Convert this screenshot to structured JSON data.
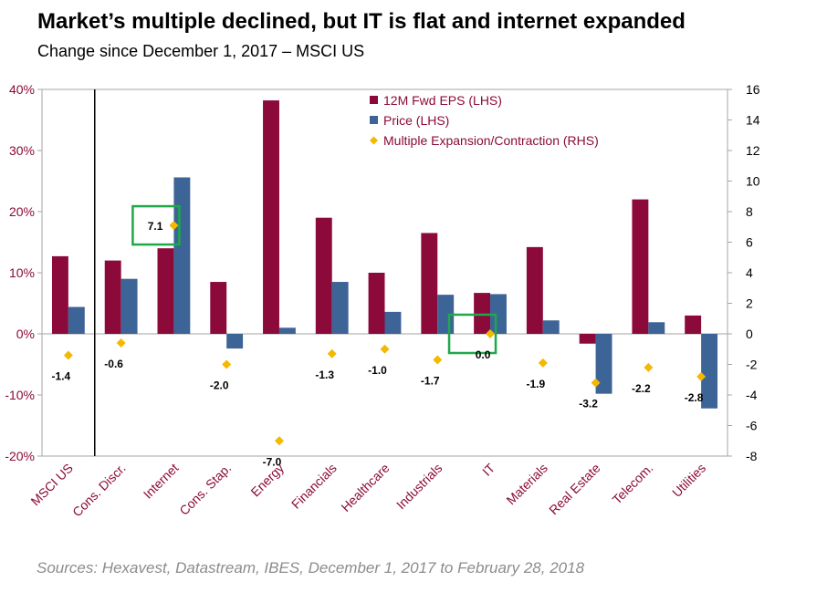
{
  "title": "Market’s multiple declined, but IT is flat and internet expanded",
  "subtitle": "Change since December 1, 2017 – MSCI US",
  "source": "Sources: Hexavest, Datastream, IBES, December 1, 2017 to February 28, 2018",
  "colors": {
    "eps": "#8b0a3a",
    "price": "#3d6496",
    "multiple": "#f5b800",
    "highlight": "#1ea84a"
  },
  "chart_data": {
    "type": "bar",
    "categories": [
      "MSCI US",
      "Cons. Discr.",
      "Internet",
      "Cons. Stap.",
      "Energy",
      "Financials",
      "Healthcare",
      "Industrials",
      "IT",
      "Materials",
      "Real Estate",
      "Telecom.",
      "Utilities"
    ],
    "series": [
      {
        "name": "12M Fwd EPS (LHS)",
        "axis": "left",
        "kind": "bar",
        "values": [
          12.7,
          12.0,
          14.0,
          8.5,
          38.2,
          19.0,
          10.0,
          16.5,
          6.7,
          14.2,
          -1.6,
          22.0,
          3.0
        ]
      },
      {
        "name": "Price (LHS)",
        "axis": "left",
        "kind": "bar",
        "values": [
          4.4,
          9.0,
          25.6,
          -2.4,
          1.0,
          8.5,
          3.6,
          6.4,
          6.5,
          2.2,
          -9.8,
          1.9,
          -12.2
        ]
      },
      {
        "name": "Multiple Expansion/Contraction (RHS)",
        "axis": "right",
        "kind": "scatter",
        "values": [
          -1.4,
          -0.6,
          7.1,
          -2.0,
          -7.0,
          -1.3,
          -1.0,
          -1.7,
          0.0,
          -1.9,
          -3.2,
          -2.2,
          -2.8
        ]
      }
    ],
    "data_labels": [
      "-1.4",
      "-0.6",
      "7.1",
      "-2.0",
      "-7.0",
      "-1.3",
      "-1.0",
      "-1.7",
      "0.0",
      "-1.9",
      "-3.2",
      "-2.2",
      "-2.8"
    ],
    "y_left": {
      "ylim": [
        -20,
        40
      ],
      "ticks": [
        -20,
        -10,
        0,
        10,
        20,
        30,
        40
      ],
      "tick_labels": [
        "-20%",
        "-10%",
        "0%",
        "10%",
        "20%",
        "30%",
        "40%"
      ]
    },
    "y_right": {
      "ylim": [
        -8,
        16
      ],
      "ticks": [
        -8,
        -6,
        -4,
        -2,
        0,
        2,
        4,
        6,
        8,
        10,
        12,
        14,
        16
      ],
      "tick_labels": [
        "-8",
        "-6",
        "-4",
        "-2",
        "0",
        "2",
        "4",
        "6",
        "8",
        "10",
        "12",
        "14",
        "16"
      ]
    },
    "highlighted_categories": [
      "Internet",
      "IT"
    ],
    "legend_position": "top",
    "grid": false
  }
}
